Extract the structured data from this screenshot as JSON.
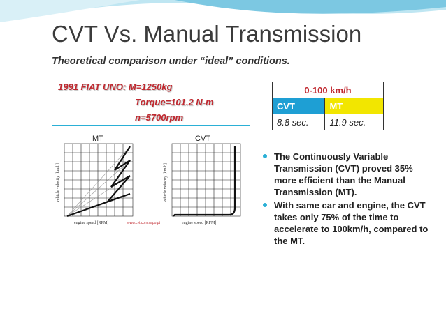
{
  "slide": {
    "title": "CVT Vs. Manual Transmission",
    "subtitle": "Theoretical comparison under “ideal” conditions."
  },
  "specs": {
    "line1": "1991 FIAT UNO: M=1250kg",
    "line2": "Torque=101.2 N-m",
    "line3": "n=5700rpm"
  },
  "graphs": {
    "mt_title": "MT",
    "cvt_title": "CVT",
    "y_label": "vehicle velocity [km/h]",
    "x_label": "engine speed [RPM]",
    "source": "www.cvt.com.sapo.pt"
  },
  "table": {
    "header": "0-100 km/h",
    "col1": "CVT",
    "col2": "MT",
    "val1": "8.8 sec.",
    "val2": "11.9 sec."
  },
  "bullets": [
    "The Continuously Variable Transmission (CVT) proved 35% more efficient than the Manual Transmission (MT).",
    "With same car and engine, the CVT takes only 75% of the time to accelerate to 100km/h, compared to the MT."
  ],
  "colors": {
    "accent": "#2bb0d6",
    "spec_text": "#c0282f",
    "cvt_cell": "#1e9fd4",
    "mt_cell": "#f2e600"
  }
}
